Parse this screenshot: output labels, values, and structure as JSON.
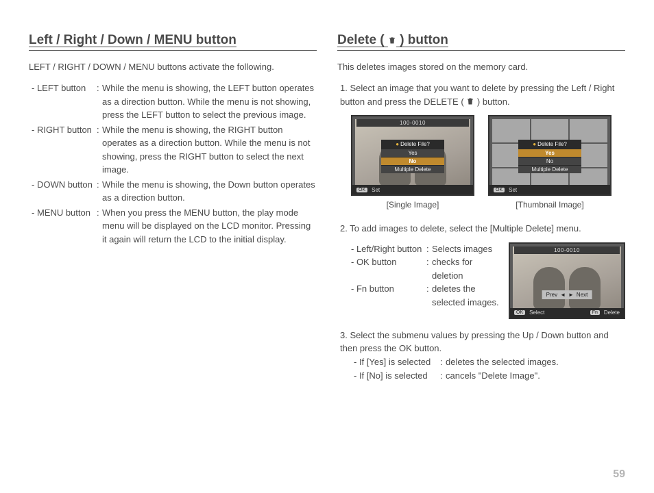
{
  "page_number": "59",
  "left": {
    "title": "Left / Right / Down / MENU button",
    "intro": "LEFT / RIGHT / DOWN / MENU buttons activate the following.",
    "items": [
      {
        "label": "- LEFT button",
        "desc": "While the menu is showing, the LEFT button operates as a direction button. While the menu is not showing, press the LEFT button to select the previous image."
      },
      {
        "label": "- RIGHT button",
        "desc": "While the menu is showing, the RIGHT button operates as a direction button. While the menu is not showing, press the RIGHT button to select the next image."
      },
      {
        "label": "- DOWN button",
        "desc": "While the menu is showing, the Down button operates as a direction button."
      },
      {
        "label": "- MENU button",
        "desc": "When you press the MENU button, the play mode menu will be displayed on the LCD monitor. Pressing it again will return the LCD to the initial display."
      }
    ]
  },
  "right": {
    "title_pre": "Delete (",
    "title_post": ") button",
    "intro": "This deletes images stored on the memory card.",
    "step1_num": "1. ",
    "step1_a": "Select an image that you want to delete by pressing the Left / Right button and press the DELETE (",
    "step1_b": ") button.",
    "lcd": {
      "counter": "100-0010",
      "dlg_title": "Delete File?",
      "opt_yes": "Yes",
      "opt_no": "No",
      "opt_multi": "Multiple Delete",
      "set_label": "Set",
      "ok_key": "OK",
      "fn_key": "Fn",
      "select_label": "Select",
      "delete_label": "Delete",
      "prev": "Prev",
      "next": "Next"
    },
    "caption_single": "[Single Image]",
    "caption_thumb": "[Thumbnail Image]",
    "step2": "2. To add images to delete, select the [Multiple Delete] menu.",
    "multi": [
      {
        "label": "- Left/Right button",
        "desc": "Selects images"
      },
      {
        "label": "- OK button",
        "desc": "checks for deletion"
      },
      {
        "label": "- Fn button",
        "desc": "deletes the selected images."
      }
    ],
    "step3": "3. Select the submenu values by pressing the Up / Down button and then press the OK button.",
    "if_rows": [
      {
        "label": "- If [Yes] is selected",
        "desc": "deletes the selected images."
      },
      {
        "label": "- If [No] is selected",
        "desc": "cancels \"Delete Image\"."
      }
    ]
  }
}
